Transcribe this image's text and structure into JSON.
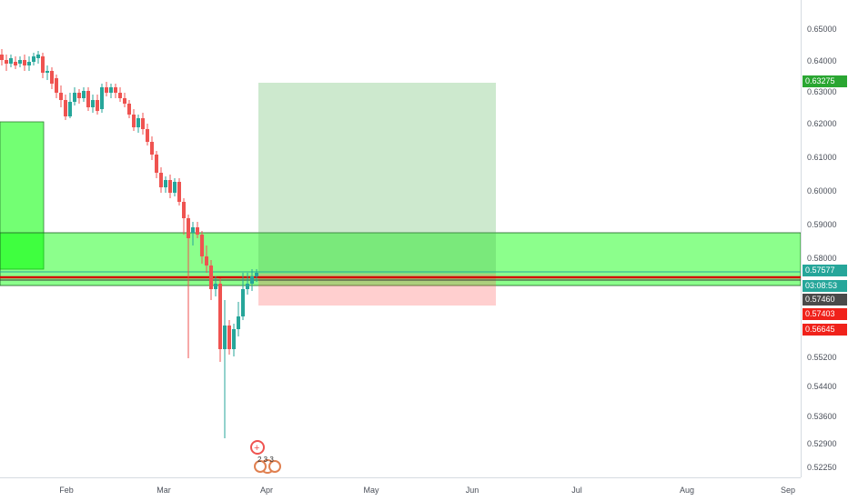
{
  "price_axis": {
    "ticks": [
      "0.65000",
      "0.64000",
      "0.63000",
      "0.62000",
      "0.61000",
      "0.60000",
      "0.59000",
      "0.58000",
      "0.55200",
      "0.54400",
      "0.53600",
      "0.52900",
      "0.52250"
    ],
    "tags": [
      {
        "label": "0.63275",
        "color": "#2aa632",
        "value": 0.63275
      },
      {
        "label": "0.57577",
        "color": "#26a69a",
        "value": 0.57577
      },
      {
        "label": "03:08:53",
        "color": "#26a69a",
        "value": 0.5744
      },
      {
        "label": "0.57460",
        "color": "#4a4a4a",
        "value": 0.5746
      },
      {
        "label": "0.57403",
        "color": "#f0221b",
        "value": 0.57403
      },
      {
        "label": "0.56645",
        "color": "#f0221b",
        "value": 0.56645
      }
    ]
  },
  "time_axis": {
    "labels": [
      "Feb",
      "Mar",
      "Apr",
      "May",
      "Jun",
      "Jul",
      "Aug",
      "Sep"
    ]
  },
  "chart": {
    "colors": {
      "up": "#26a69a",
      "down": "#ef5350",
      "zone": "#00ff00",
      "target": "#4caf50",
      "stop": "#ff5252",
      "line_red": "#d50000"
    }
  },
  "overlay": {
    "event_labels": "2 3 3"
  }
}
